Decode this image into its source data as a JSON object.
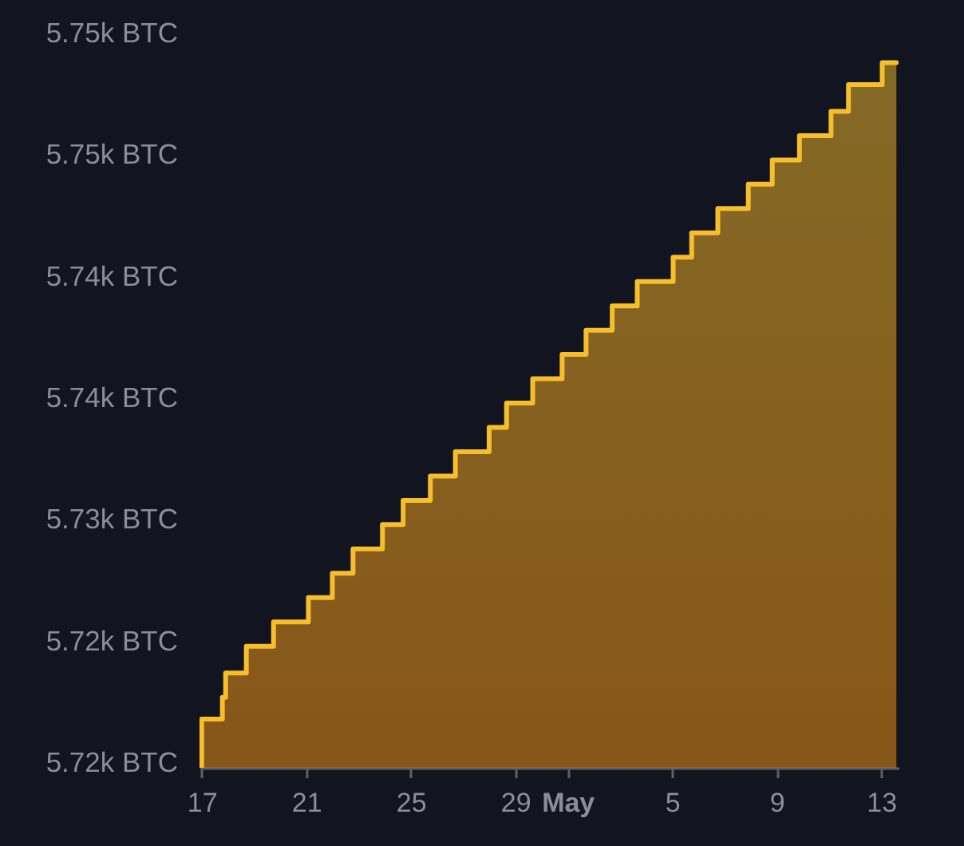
{
  "chart_data": {
    "type": "area",
    "color": "#f6be2c",
    "x": [
      "--04-16T22:00",
      "--04-17T00:00",
      "--04-17T19:00",
      "--04-17T22:00",
      "--04-18T17:00",
      "--04-19T18:00",
      "--04-21T02:00",
      "--04-22T00:00",
      "--04-22T19:00",
      "--04-23T22:00",
      "--04-24T17:00",
      "--04-25T18:00",
      "--04-26T17:00",
      "--04-28T00:00",
      "--04-28T16:00",
      "--04-29T16:00",
      "--04-30T19:00",
      "--05-01T17:00",
      "--05-02T17:00",
      "--05-03T16:00",
      "--05-05T01:00",
      "--05-05T18:00",
      "--05-06T18:00",
      "--05-07T22:00",
      "--05-08T20:00",
      "--05-09T21:00",
      "--05-11T02:00",
      "--05-11T18:00",
      "--05-13T01:00",
      "--05-13T14:00"
    ],
    "values": [
      5719.8,
      5721.8,
      5722.7,
      5723.7,
      5724.8,
      5725.8,
      5726.8,
      5727.8,
      5728.8,
      5729.8,
      5730.8,
      5731.8,
      5732.8,
      5733.8,
      5734.8,
      5735.8,
      5736.8,
      5737.8,
      5738.8,
      5739.8,
      5740.8,
      5741.8,
      5742.8,
      5743.8,
      5744.8,
      5745.8,
      5746.8,
      5747.9,
      5748.8,
      5748.8
    ],
    "xlim": [
      "--04-16T22:00",
      "--05-13T16:00"
    ],
    "xticks": [
      {
        "value": "--04-17",
        "label": "17"
      },
      {
        "value": "--04-21",
        "label": "21"
      },
      {
        "value": "--04-25",
        "label": "25"
      },
      {
        "value": "--04-29",
        "label": "29"
      },
      {
        "value": "--05-01",
        "label": "May"
      },
      {
        "value": "--05-05",
        "label": "5"
      },
      {
        "value": "--05-09",
        "label": "9"
      },
      {
        "value": "--05-13",
        "label": "13"
      }
    ],
    "ylim": [
      5719.8,
      5750
    ],
    "yticks": [
      {
        "value": 5720,
        "label": "5.72k BTC"
      },
      {
        "value": 5725,
        "label": "5.72k BTC"
      },
      {
        "value": 5730,
        "label": "5.73k BTC"
      },
      {
        "value": 5735,
        "label": "5.74k BTC"
      },
      {
        "value": 5740,
        "label": "5.74k BTC"
      },
      {
        "value": 5745,
        "label": "5.75k BTC"
      },
      {
        "value": 5750,
        "label": "5.75k BTC"
      }
    ]
  }
}
